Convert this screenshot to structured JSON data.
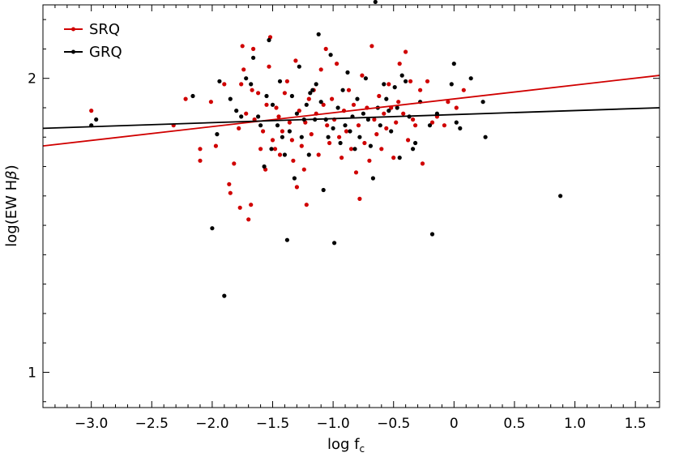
{
  "chart_data": {
    "type": "scatter",
    "title": "",
    "xlabel": "log f",
    "xlabel_subscript": "c",
    "ylabel": "log(EW H",
    "ylabel_symbol": "β",
    "ylabel_suffix": ")",
    "xlim": [
      -3.4,
      1.7
    ],
    "ylim": [
      0.88,
      2.25
    ],
    "x_ticks": [
      -3.0,
      -2.5,
      -2.0,
      -1.5,
      -1.0,
      -0.5,
      0,
      0.5,
      1.0,
      1.5
    ],
    "x_tick_labels": [
      "−3.0",
      "−2.5",
      "−2.0",
      "−1.5",
      "−1.0",
      "−0.5",
      "0",
      "0.5",
      "1.0",
      "1.5"
    ],
    "y_ticks": [
      1,
      2
    ],
    "y_tick_labels": [
      "1",
      "2"
    ],
    "grid": false,
    "legend_position": "top-left",
    "series": [
      {
        "name": "SRQ",
        "color": "#d00000",
        "fit_line": {
          "x": [
            -3.4,
            1.7
          ],
          "y": [
            1.77,
            2.01
          ]
        },
        "points": [
          [
            -3.0,
            1.89
          ],
          [
            -2.32,
            1.84
          ],
          [
            -2.22,
            1.93
          ],
          [
            -2.1,
            1.76
          ],
          [
            -2.1,
            1.72
          ],
          [
            -2.01,
            1.92
          ],
          [
            -1.97,
            1.77
          ],
          [
            -1.9,
            1.98
          ],
          [
            -1.86,
            1.64
          ],
          [
            -1.85,
            1.61
          ],
          [
            -1.82,
            1.71
          ],
          [
            -1.78,
            1.83
          ],
          [
            -1.77,
            1.56
          ],
          [
            -1.76,
            1.98
          ],
          [
            -1.75,
            2.11
          ],
          [
            -1.74,
            2.03
          ],
          [
            -1.72,
            1.88
          ],
          [
            -1.7,
            1.52
          ],
          [
            -1.68,
            1.57
          ],
          [
            -1.67,
            1.96
          ],
          [
            -1.66,
            2.1
          ],
          [
            -1.65,
            1.86
          ],
          [
            -1.62,
            1.95
          ],
          [
            -1.6,
            1.76
          ],
          [
            -1.58,
            1.82
          ],
          [
            -1.56,
            1.69
          ],
          [
            -1.55,
            1.91
          ],
          [
            -1.53,
            2.04
          ],
          [
            -1.52,
            2.14
          ],
          [
            -1.5,
            1.79
          ],
          [
            -1.48,
            1.76
          ],
          [
            -1.47,
            1.9
          ],
          [
            -1.45,
            1.87
          ],
          [
            -1.44,
            1.74
          ],
          [
            -1.42,
            1.82
          ],
          [
            -1.4,
            1.95
          ],
          [
            -1.38,
            1.99
          ],
          [
            -1.36,
            1.85
          ],
          [
            -1.34,
            1.79
          ],
          [
            -1.33,
            1.72
          ],
          [
            -1.31,
            2.06
          ],
          [
            -1.3,
            1.63
          ],
          [
            -1.28,
            1.89
          ],
          [
            -1.26,
            1.77
          ],
          [
            -1.24,
            1.69
          ],
          [
            -1.23,
            1.85
          ],
          [
            -1.22,
            1.57
          ],
          [
            -1.2,
            1.93
          ],
          [
            -1.18,
            1.81
          ],
          [
            -1.16,
            1.96
          ],
          [
            -1.14,
            1.88
          ],
          [
            -1.12,
            1.74
          ],
          [
            -1.1,
            2.03
          ],
          [
            -1.08,
            1.91
          ],
          [
            -1.06,
            2.1
          ],
          [
            -1.05,
            1.84
          ],
          [
            -1.03,
            1.78
          ],
          [
            -1.01,
            1.93
          ],
          [
            -0.99,
            1.86
          ],
          [
            -0.97,
            2.05
          ],
          [
            -0.95,
            1.8
          ],
          [
            -0.93,
            1.73
          ],
          [
            -0.91,
            1.89
          ],
          [
            -0.89,
            1.82
          ],
          [
            -0.87,
            1.96
          ],
          [
            -0.85,
            1.76
          ],
          [
            -0.83,
            1.91
          ],
          [
            -0.81,
            1.68
          ],
          [
            -0.79,
            1.84
          ],
          [
            -0.78,
            1.59
          ],
          [
            -0.76,
            2.01
          ],
          [
            -0.74,
            1.78
          ],
          [
            -0.72,
            1.9
          ],
          [
            -0.7,
            1.72
          ],
          [
            -0.68,
            2.11
          ],
          [
            -0.66,
            1.86
          ],
          [
            -0.64,
            1.81
          ],
          [
            -0.62,
            1.94
          ],
          [
            -0.6,
            1.76
          ],
          [
            -0.58,
            1.88
          ],
          [
            -0.56,
            1.83
          ],
          [
            -0.54,
            1.98
          ],
          [
            -0.52,
            1.9
          ],
          [
            -0.5,
            1.73
          ],
          [
            -0.48,
            1.85
          ],
          [
            -0.46,
            1.92
          ],
          [
            -0.45,
            2.05
          ],
          [
            -0.42,
            1.88
          ],
          [
            -0.4,
            2.09
          ],
          [
            -0.38,
            1.79
          ],
          [
            -0.36,
            1.99
          ],
          [
            -0.34,
            1.86
          ],
          [
            -0.32,
            1.84
          ],
          [
            -0.28,
            1.96
          ],
          [
            -0.26,
            1.71
          ],
          [
            -0.22,
            1.99
          ],
          [
            -0.18,
            1.85
          ],
          [
            -0.14,
            1.87
          ],
          [
            -0.08,
            1.84
          ],
          [
            -0.05,
            1.92
          ],
          [
            0.02,
            1.9
          ],
          [
            0.08,
            1.96
          ]
        ]
      },
      {
        "name": "GRQ",
        "color": "#000000",
        "fit_line": {
          "x": [
            -3.4,
            1.7
          ],
          "y": [
            1.83,
            1.9
          ]
        },
        "points": [
          [
            -3.0,
            1.84
          ],
          [
            -2.96,
            1.86
          ],
          [
            -2.16,
            1.94
          ],
          [
            -2.0,
            1.49
          ],
          [
            -1.96,
            1.81
          ],
          [
            -1.94,
            1.99
          ],
          [
            -1.9,
            1.26
          ],
          [
            -1.85,
            1.93
          ],
          [
            -1.8,
            1.89
          ],
          [
            -1.76,
            1.87
          ],
          [
            -1.72,
            2.0
          ],
          [
            -1.68,
            1.98
          ],
          [
            -1.66,
            2.07
          ],
          [
            -1.62,
            1.87
          ],
          [
            -1.6,
            1.84
          ],
          [
            -1.57,
            1.7
          ],
          [
            -1.55,
            1.94
          ],
          [
            -1.53,
            2.13
          ],
          [
            -1.51,
            1.76
          ],
          [
            -1.5,
            1.91
          ],
          [
            -1.46,
            1.84
          ],
          [
            -1.44,
            1.99
          ],
          [
            -1.42,
            1.8
          ],
          [
            -1.4,
            1.74
          ],
          [
            -1.38,
            1.45
          ],
          [
            -1.36,
            1.82
          ],
          [
            -1.34,
            1.94
          ],
          [
            -1.32,
            1.66
          ],
          [
            -1.3,
            1.88
          ],
          [
            -1.28,
            2.04
          ],
          [
            -1.26,
            1.8
          ],
          [
            -1.24,
            1.86
          ],
          [
            -1.22,
            1.91
          ],
          [
            -1.2,
            1.74
          ],
          [
            -1.19,
            1.95
          ],
          [
            -1.17,
            1.96
          ],
          [
            -1.15,
            1.86
          ],
          [
            -1.14,
            1.98
          ],
          [
            -1.12,
            2.15
          ],
          [
            -1.1,
            1.92
          ],
          [
            -1.08,
            1.62
          ],
          [
            -1.06,
            1.86
          ],
          [
            -1.04,
            1.8
          ],
          [
            -1.02,
            2.08
          ],
          [
            -1.0,
            1.83
          ],
          [
            -0.99,
            1.44
          ],
          [
            -0.96,
            1.9
          ],
          [
            -0.94,
            1.78
          ],
          [
            -0.92,
            1.96
          ],
          [
            -0.9,
            1.84
          ],
          [
            -0.88,
            2.02
          ],
          [
            -0.86,
            1.82
          ],
          [
            -0.84,
            1.87
          ],
          [
            -0.82,
            1.76
          ],
          [
            -0.8,
            1.93
          ],
          [
            -0.78,
            1.8
          ],
          [
            -0.75,
            1.88
          ],
          [
            -0.73,
            2.0
          ],
          [
            -0.71,
            1.86
          ],
          [
            -0.69,
            1.77
          ],
          [
            -0.67,
            1.66
          ],
          [
            -0.65,
            2.26
          ],
          [
            -0.63,
            1.9
          ],
          [
            -0.61,
            1.84
          ],
          [
            -0.58,
            1.98
          ],
          [
            -0.56,
            1.93
          ],
          [
            -0.54,
            1.89
          ],
          [
            -0.52,
            1.82
          ],
          [
            -0.49,
            1.97
          ],
          [
            -0.47,
            1.9
          ],
          [
            -0.45,
            1.73
          ],
          [
            -0.43,
            2.01
          ],
          [
            -0.4,
            1.99
          ],
          [
            -0.37,
            1.87
          ],
          [
            -0.34,
            1.76
          ],
          [
            -0.32,
            1.78
          ],
          [
            -0.28,
            1.92
          ],
          [
            -0.2,
            1.84
          ],
          [
            -0.18,
            1.47
          ],
          [
            -0.14,
            1.88
          ],
          [
            -0.02,
            1.98
          ],
          [
            0.0,
            2.05
          ],
          [
            0.02,
            1.85
          ],
          [
            0.05,
            1.83
          ],
          [
            0.14,
            2.0
          ],
          [
            0.24,
            1.92
          ],
          [
            0.26,
            1.8
          ],
          [
            0.88,
            1.6
          ]
        ]
      }
    ]
  }
}
